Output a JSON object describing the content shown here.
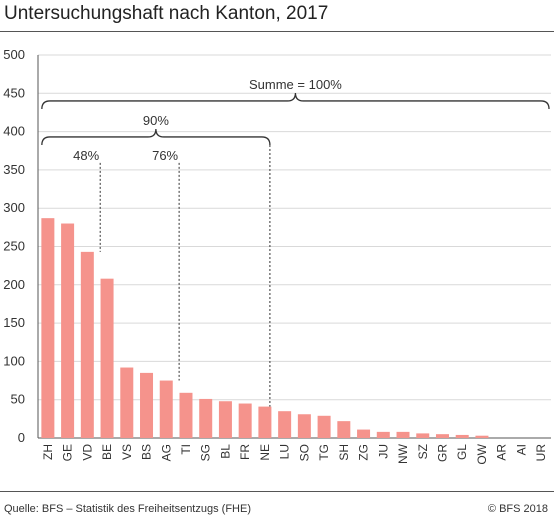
{
  "title": "Untersuchungshaft nach Kanton, 2017",
  "source": "Quelle: BFS – Statistik des Freiheitsentzugs (FHE)",
  "copyright": "© BFS 2018",
  "colors": {
    "bar": "#f5938c",
    "grid": "#d9d9d9",
    "axis": "#555555",
    "text": "#333333"
  },
  "chart_data": {
    "type": "bar",
    "title": "Untersuchungshaft nach Kanton, 2017",
    "categories": [
      "ZH",
      "GE",
      "VD",
      "BE",
      "VS",
      "BS",
      "AG",
      "TI",
      "SG",
      "BL",
      "FR",
      "NE",
      "LU",
      "SO",
      "TG",
      "SH",
      "ZG",
      "JU",
      "NW",
      "SZ",
      "GR",
      "GL",
      "OW",
      "AR",
      "AI",
      "UR"
    ],
    "values": [
      287,
      280,
      243,
      208,
      92,
      85,
      75,
      59,
      51,
      48,
      45,
      41,
      35,
      31,
      29,
      22,
      11,
      8,
      8,
      6,
      5,
      4,
      3,
      0,
      0,
      0
    ],
    "ylim": [
      0,
      500
    ],
    "yticks": [
      0,
      50,
      100,
      150,
      200,
      250,
      300,
      350,
      400,
      450,
      500
    ],
    "grid": true,
    "annotations": [
      {
        "type": "brace",
        "label": "Summe = 100%",
        "from_category": "ZH",
        "to_category": "UR",
        "y": 440
      },
      {
        "type": "brace",
        "label": "90%",
        "from_category": "ZH",
        "to_category": "NE",
        "y": 393
      },
      {
        "type": "marker",
        "label": "48%",
        "after_category": "VD",
        "y": 350
      },
      {
        "type": "marker",
        "label": "76%",
        "after_category": "AG",
        "y": 350
      }
    ]
  }
}
